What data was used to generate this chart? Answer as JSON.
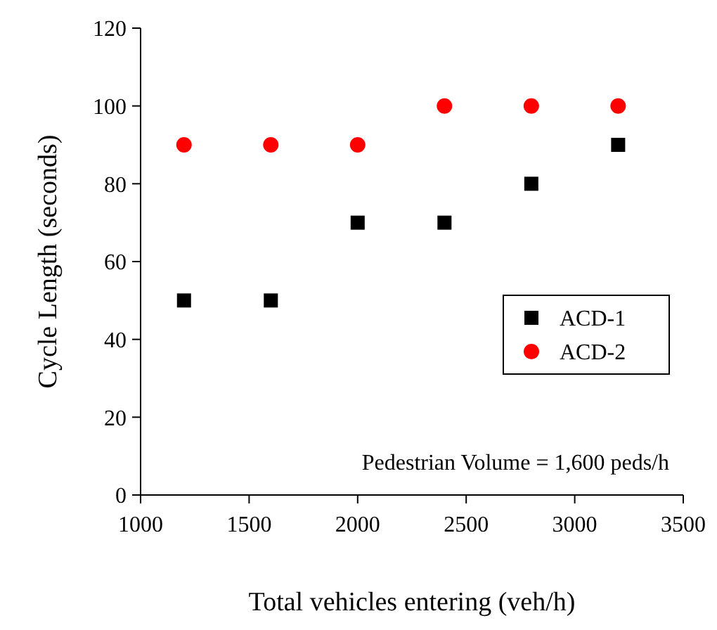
{
  "chart_data": {
    "type": "scatter",
    "xlabel": "Total vehicles entering (veh/h)",
    "ylabel": "Cycle Length (seconds)",
    "x": [
      1200,
      1600,
      2000,
      2400,
      2800,
      3200
    ],
    "series": [
      {
        "name": "ACD-1",
        "color": "#000000",
        "marker": "square",
        "values": [
          50,
          50,
          70,
          70,
          80,
          90
        ]
      },
      {
        "name": "ACD-2",
        "color": "#ff0000",
        "marker": "circle",
        "values": [
          90,
          90,
          90,
          100,
          100,
          100
        ]
      }
    ],
    "xlim": [
      1000,
      3500
    ],
    "xticks": [
      1000,
      1500,
      2000,
      2500,
      3000,
      3500
    ],
    "ylim": [
      0,
      120
    ],
    "yticks": [
      0,
      20,
      40,
      60,
      80,
      100,
      120
    ],
    "grid": false,
    "legend": "right",
    "annotations": [
      "Pedestrian Volume = 1,600 peds/h"
    ]
  }
}
